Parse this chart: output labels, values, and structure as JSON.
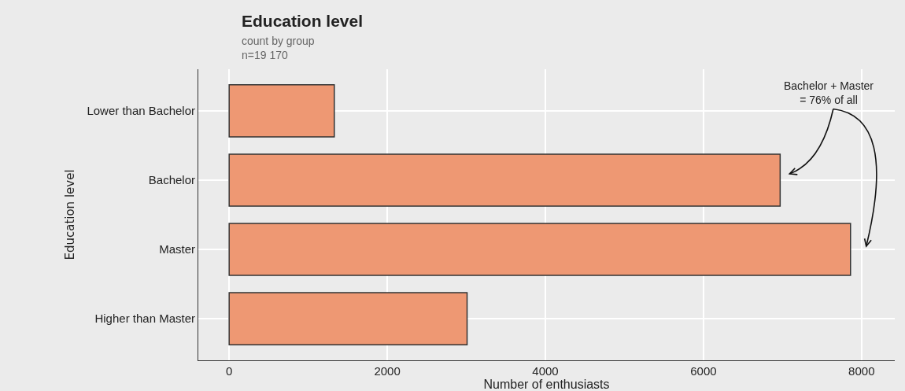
{
  "chart_data": {
    "type": "bar",
    "orientation": "horizontal",
    "title": "Education level",
    "subtitle": "count by group\nn=19 170",
    "xlabel": "Number of enthusiasts",
    "ylabel": "Education level",
    "categories": [
      "Lower than Bachelor",
      "Bachelor",
      "Master",
      "Higher than Master"
    ],
    "values": [
      1330,
      6970,
      7860,
      3010
    ],
    "color": "#ee9873",
    "xlim": [
      -390,
      8420
    ],
    "xticks": [
      0,
      2000,
      4000,
      6000,
      8000
    ],
    "grid": true,
    "annotations": [
      "Bachelor + Master\n= 76% of all"
    ]
  }
}
